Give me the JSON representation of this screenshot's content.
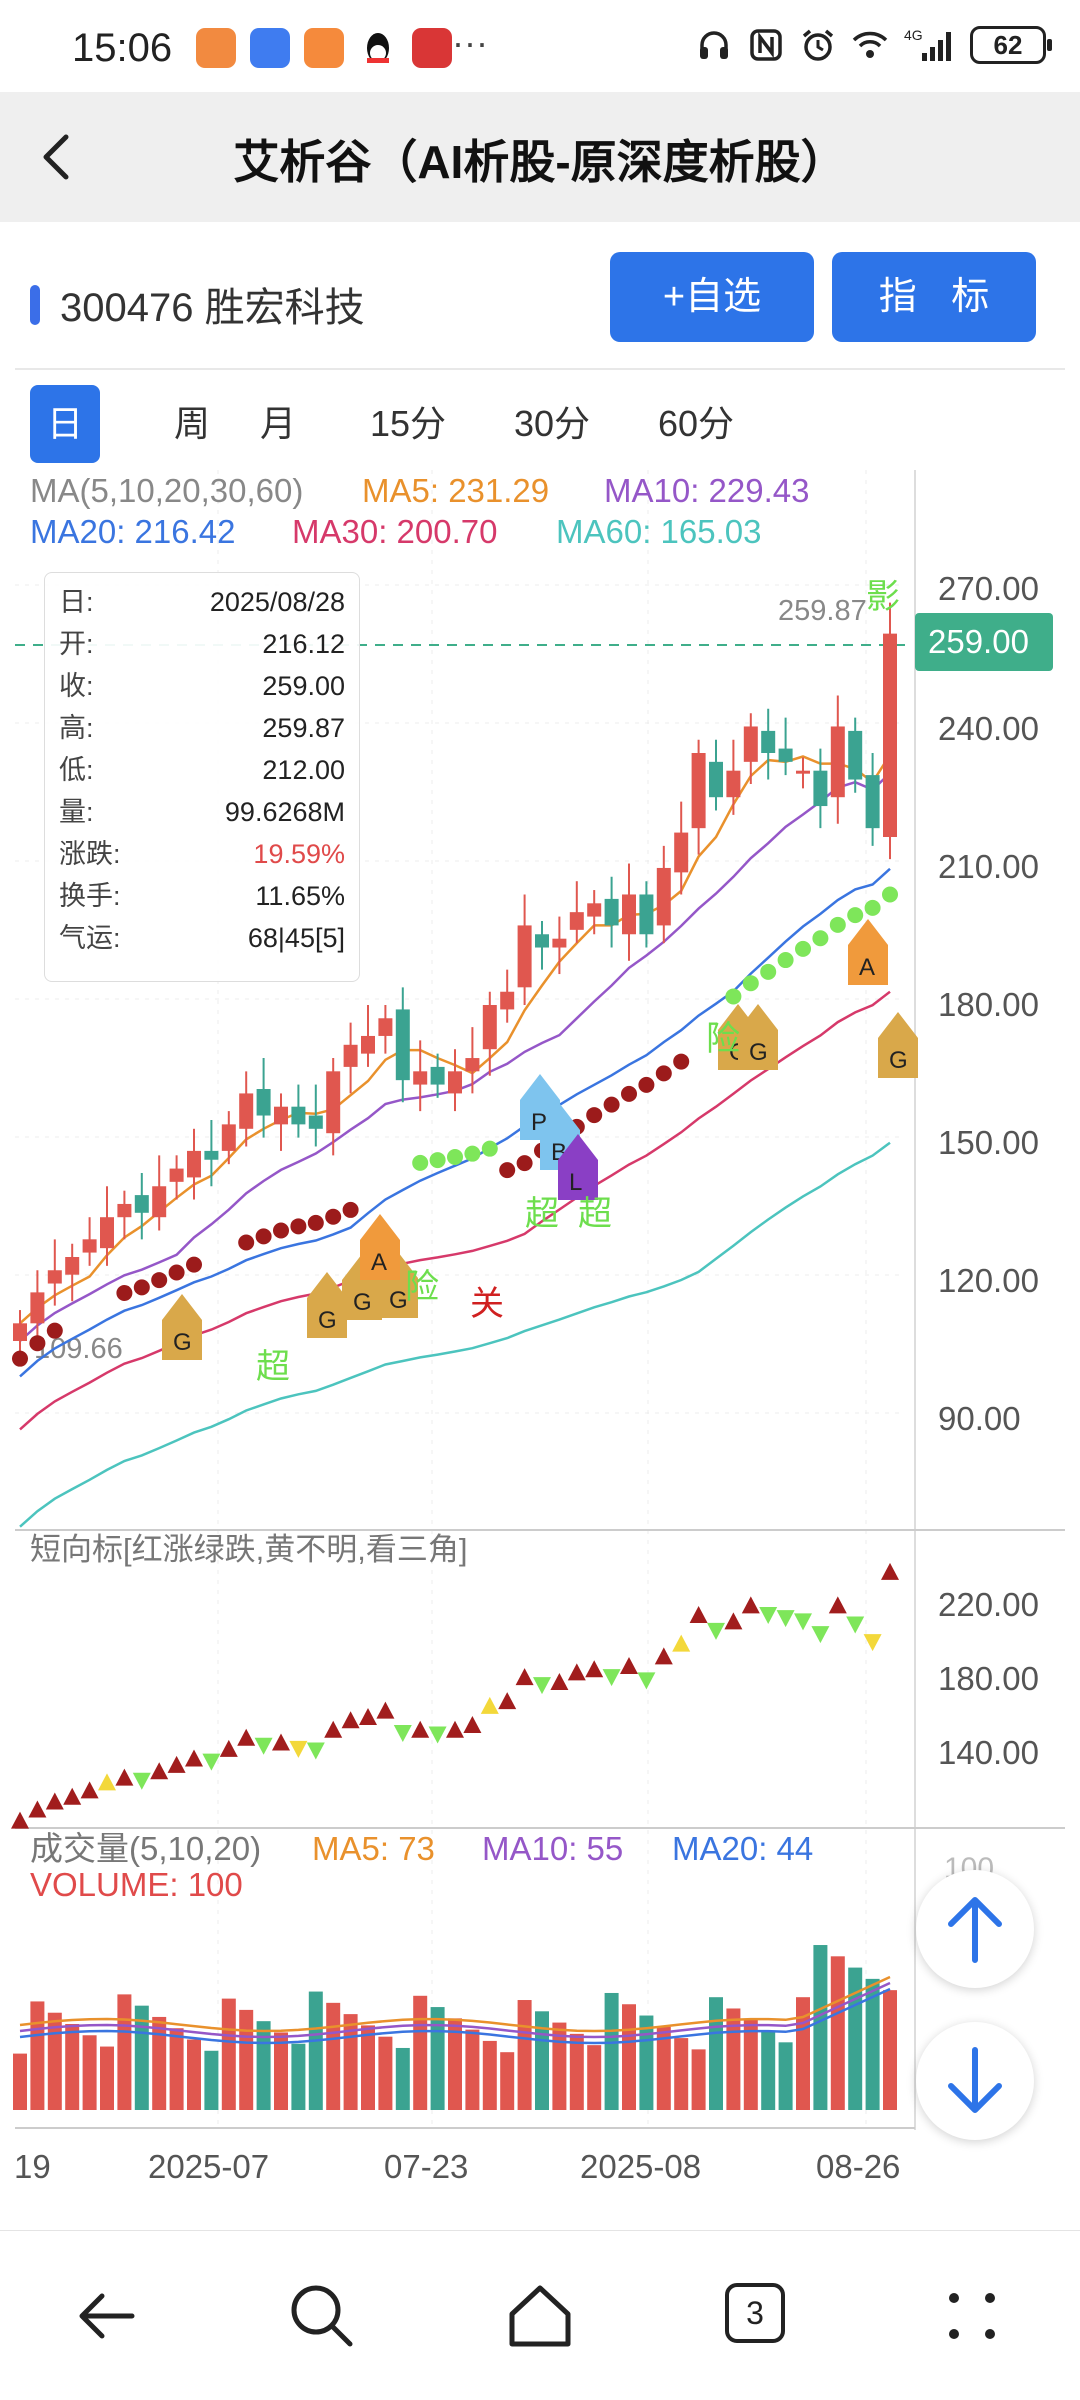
{
  "status": {
    "time": "15:06",
    "more": "···",
    "network": "4G",
    "battery": "62"
  },
  "header": {
    "title": "艾析谷（AI析股-原深度析股）"
  },
  "stock": {
    "label": "300476 胜宏科技"
  },
  "buttons": {
    "add_watchlist": "+自选",
    "indicator": "指 标"
  },
  "periods": [
    "日",
    "周",
    "月",
    "15分",
    "30分",
    "60分"
  ],
  "ma_legend": {
    "title": "MA(5,10,20,30,60)",
    "ma5": "MA5: 231.29",
    "ma10": "MA10: 229.43",
    "ma20": "MA20: 216.42",
    "ma30": "MA30: 200.70",
    "ma60": "MA60: 165.03"
  },
  "tooltip": [
    {
      "k": "日:",
      "v": "2025/08/28"
    },
    {
      "k": "开:",
      "v": "216.12"
    },
    {
      "k": "收:",
      "v": "259.00"
    },
    {
      "k": "高:",
      "v": "259.87"
    },
    {
      "k": "低:",
      "v": "212.00"
    },
    {
      "k": "量:",
      "v": "99.6268M"
    },
    {
      "k": "涨跌:",
      "v": "19.59%"
    },
    {
      "k": "换手:",
      "v": "11.65%"
    },
    {
      "k": "气运:",
      "v": "68|45[5]"
    }
  ],
  "price_axis": {
    "ticks": [
      "270.00",
      "240.00",
      "210.00",
      "180.00",
      "150.00",
      "120.00",
      "90.00"
    ],
    "current": "259.00",
    "high_label": "259.87",
    "low_label": "109.66"
  },
  "annotations": {
    "ying": "影",
    "chao": "超",
    "xian": "险",
    "guan": "关"
  },
  "short_panel": {
    "title": "短向标[红涨绿跌,黄不明,看三角]",
    "ticks": [
      "220.00",
      "180.00",
      "140.00"
    ]
  },
  "volume_panel": {
    "title": "成交量(5,10,20)",
    "ma5": "MA5: 73",
    "ma10": "MA10: 55",
    "ma20": "MA20: 44",
    "volume": "VOLUME: 100",
    "tick": "100"
  },
  "date_axis": [
    "19",
    "2025-07",
    "07-23",
    "2025-08",
    "08-26"
  ],
  "bottom_nav": {
    "tab_count": "3"
  },
  "chart_data": {
    "type": "bar",
    "title": "",
    "candles_close": [
      103,
      110,
      115,
      118,
      122,
      127,
      130,
      128,
      134,
      138,
      142,
      140,
      148,
      155,
      150,
      152,
      148,
      147,
      160,
      166,
      168,
      172,
      158,
      160,
      157,
      160,
      163,
      175,
      178,
      193,
      188,
      190,
      196,
      198,
      193,
      200,
      191,
      206,
      214,
      232,
      222,
      228,
      238,
      232,
      230,
      228,
      220,
      238,
      226,
      215,
      259
    ],
    "ma_values": {
      "MA5": 231.29,
      "MA10": 229.43,
      "MA20": 216.42,
      "MA30": 200.7,
      "MA60": 165.03
    },
    "ylim": [
      80,
      275
    ],
    "volume_ma": {
      "MA5": 73,
      "MA10": 55,
      "MA20": 44
    }
  }
}
